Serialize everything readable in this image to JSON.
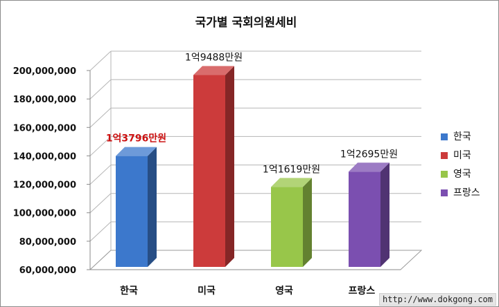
{
  "chart_data": {
    "type": "bar",
    "title": "국가별 국회의원세비",
    "categories": [
      "한국",
      "미국",
      "영국",
      "프랑스"
    ],
    "series": [
      {
        "values": [
          137960000,
          194880000,
          116190000,
          126950000
        ],
        "labels": [
          "1억3796만원",
          "1억9488만원",
          "1억1619만원",
          "1억2695만원"
        ],
        "colors": [
          "#3c78cc",
          "#cc3b3b",
          "#98c64a",
          "#7b4fb0"
        ]
      }
    ],
    "ylim": [
      60000000,
      200000000
    ],
    "yticks": [
      60000000,
      80000000,
      100000000,
      120000000,
      140000000,
      160000000,
      180000000,
      200000000
    ],
    "ytick_labels": [
      "60,000,000",
      "80,000,000",
      "100,000,000",
      "120,000,000",
      "140,000,000",
      "160,000,000",
      "180,000,000",
      "200,000,000"
    ],
    "highlight_index": 0,
    "legend": {
      "position": "right",
      "entries": [
        "한국",
        "미국",
        "영국",
        "프랑스"
      ]
    },
    "grid": true,
    "style": "3d-column"
  },
  "footer": {
    "watermark": "http://www.dokgong.com"
  }
}
